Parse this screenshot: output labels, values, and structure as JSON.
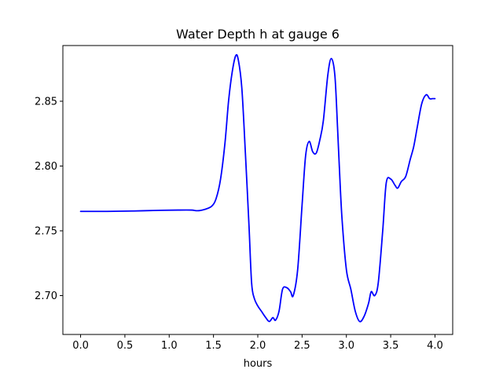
{
  "chart_data": {
    "type": "line",
    "title": "Water Depth h at gauge 6",
    "xlabel": "hours",
    "ylabel": "",
    "xlim": [
      -0.2,
      4.2
    ],
    "ylim": [
      2.67,
      2.893
    ],
    "xticks": [
      0.0,
      0.5,
      1.0,
      1.5,
      2.0,
      2.5,
      3.0,
      3.5,
      4.0
    ],
    "xtick_labels": [
      "0.0",
      "0.5",
      "1.0",
      "1.5",
      "2.0",
      "2.5",
      "3.0",
      "3.5",
      "4.0"
    ],
    "yticks": [
      2.7,
      2.75,
      2.8,
      2.85
    ],
    "ytick_labels": [
      "2.70",
      "2.75",
      "2.80",
      "2.85"
    ],
    "grid": false,
    "series": [
      {
        "color": "#0000ff",
        "x": [
          0.0,
          0.3,
          0.6,
          0.9,
          1.1,
          1.25,
          1.32,
          1.4,
          1.48,
          1.53,
          1.58,
          1.63,
          1.67,
          1.71,
          1.75,
          1.78,
          1.82,
          1.86,
          1.9,
          1.93,
          1.96,
          2.0,
          2.04,
          2.09,
          2.13,
          2.17,
          2.2,
          2.24,
          2.28,
          2.33,
          2.37,
          2.4,
          2.45,
          2.5,
          2.54,
          2.58,
          2.62,
          2.66,
          2.7,
          2.74,
          2.79,
          2.83,
          2.87,
          2.9,
          2.92,
          2.95,
          3.0,
          3.05,
          3.1,
          3.15,
          3.2,
          3.25,
          3.28,
          3.32,
          3.36,
          3.41,
          3.45,
          3.5,
          3.55,
          3.58,
          3.62,
          3.67,
          3.72,
          3.76,
          3.8,
          3.85,
          3.9,
          3.94,
          3.97,
          4.0
        ],
        "y": [
          2.765,
          2.765,
          2.7653,
          2.7658,
          2.766,
          2.766,
          2.7655,
          2.7665,
          2.769,
          2.775,
          2.79,
          2.818,
          2.85,
          2.872,
          2.885,
          2.882,
          2.86,
          2.81,
          2.755,
          2.71,
          2.698,
          2.692,
          2.688,
          2.683,
          2.68,
          2.683,
          2.681,
          2.688,
          2.705,
          2.706,
          2.703,
          2.7,
          2.72,
          2.77,
          2.808,
          2.819,
          2.811,
          2.81,
          2.82,
          2.835,
          2.87,
          2.883,
          2.87,
          2.83,
          2.8,
          2.76,
          2.72,
          2.705,
          2.688,
          2.68,
          2.684,
          2.694,
          2.703,
          2.7,
          2.71,
          2.75,
          2.787,
          2.79,
          2.785,
          2.783,
          2.788,
          2.792,
          2.805,
          2.815,
          2.83,
          2.848,
          2.855,
          2.852,
          2.852,
          2.852
        ]
      }
    ]
  }
}
